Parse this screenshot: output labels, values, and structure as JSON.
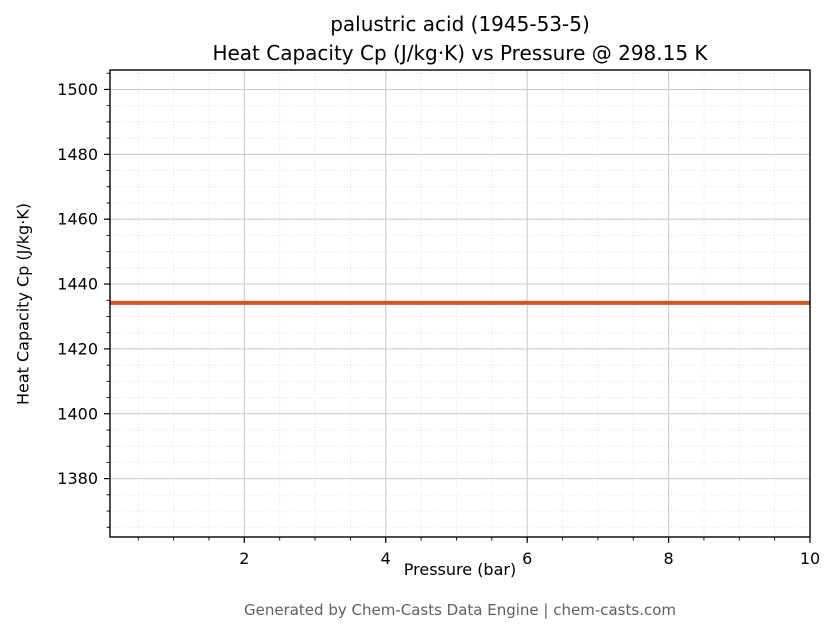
{
  "title": {
    "line1": "palustric acid (1945-53-5)",
    "line2": "Heat Capacity Cp (J/kg·K) vs Pressure @ 298.15 K"
  },
  "footer": "Generated by Chem-Casts Data Engine | chem-casts.com",
  "colors": {
    "line": "#d9531e",
    "grid_major": "#c9c9c9",
    "grid_minor": "#e4e4e4",
    "spine": "#000000",
    "footer_text": "#5f5f5f"
  },
  "chart_data": {
    "type": "line",
    "title": "palustric acid (1945-53-5)\nHeat Capacity Cp (J/kg·K) vs Pressure @ 298.15 K",
    "xlabel": "Pressure (bar)",
    "ylabel": "Heat Capacity Cp (J/kg·K)",
    "xlim": [
      0.1,
      10
    ],
    "ylim": [
      1362,
      1506
    ],
    "x_ticks": [
      2,
      4,
      6,
      8,
      10
    ],
    "y_ticks": [
      1380,
      1400,
      1420,
      1440,
      1460,
      1480,
      1500
    ],
    "x_minor_step": 0.5,
    "y_minor_step": 5,
    "grid": true,
    "legend": false,
    "series": [
      {
        "name": "Heat Capacity Cp",
        "color": "#d9531e",
        "linewidth": 4,
        "x": [
          0.1,
          10
        ],
        "y": [
          1434.2,
          1434.2
        ]
      }
    ]
  }
}
